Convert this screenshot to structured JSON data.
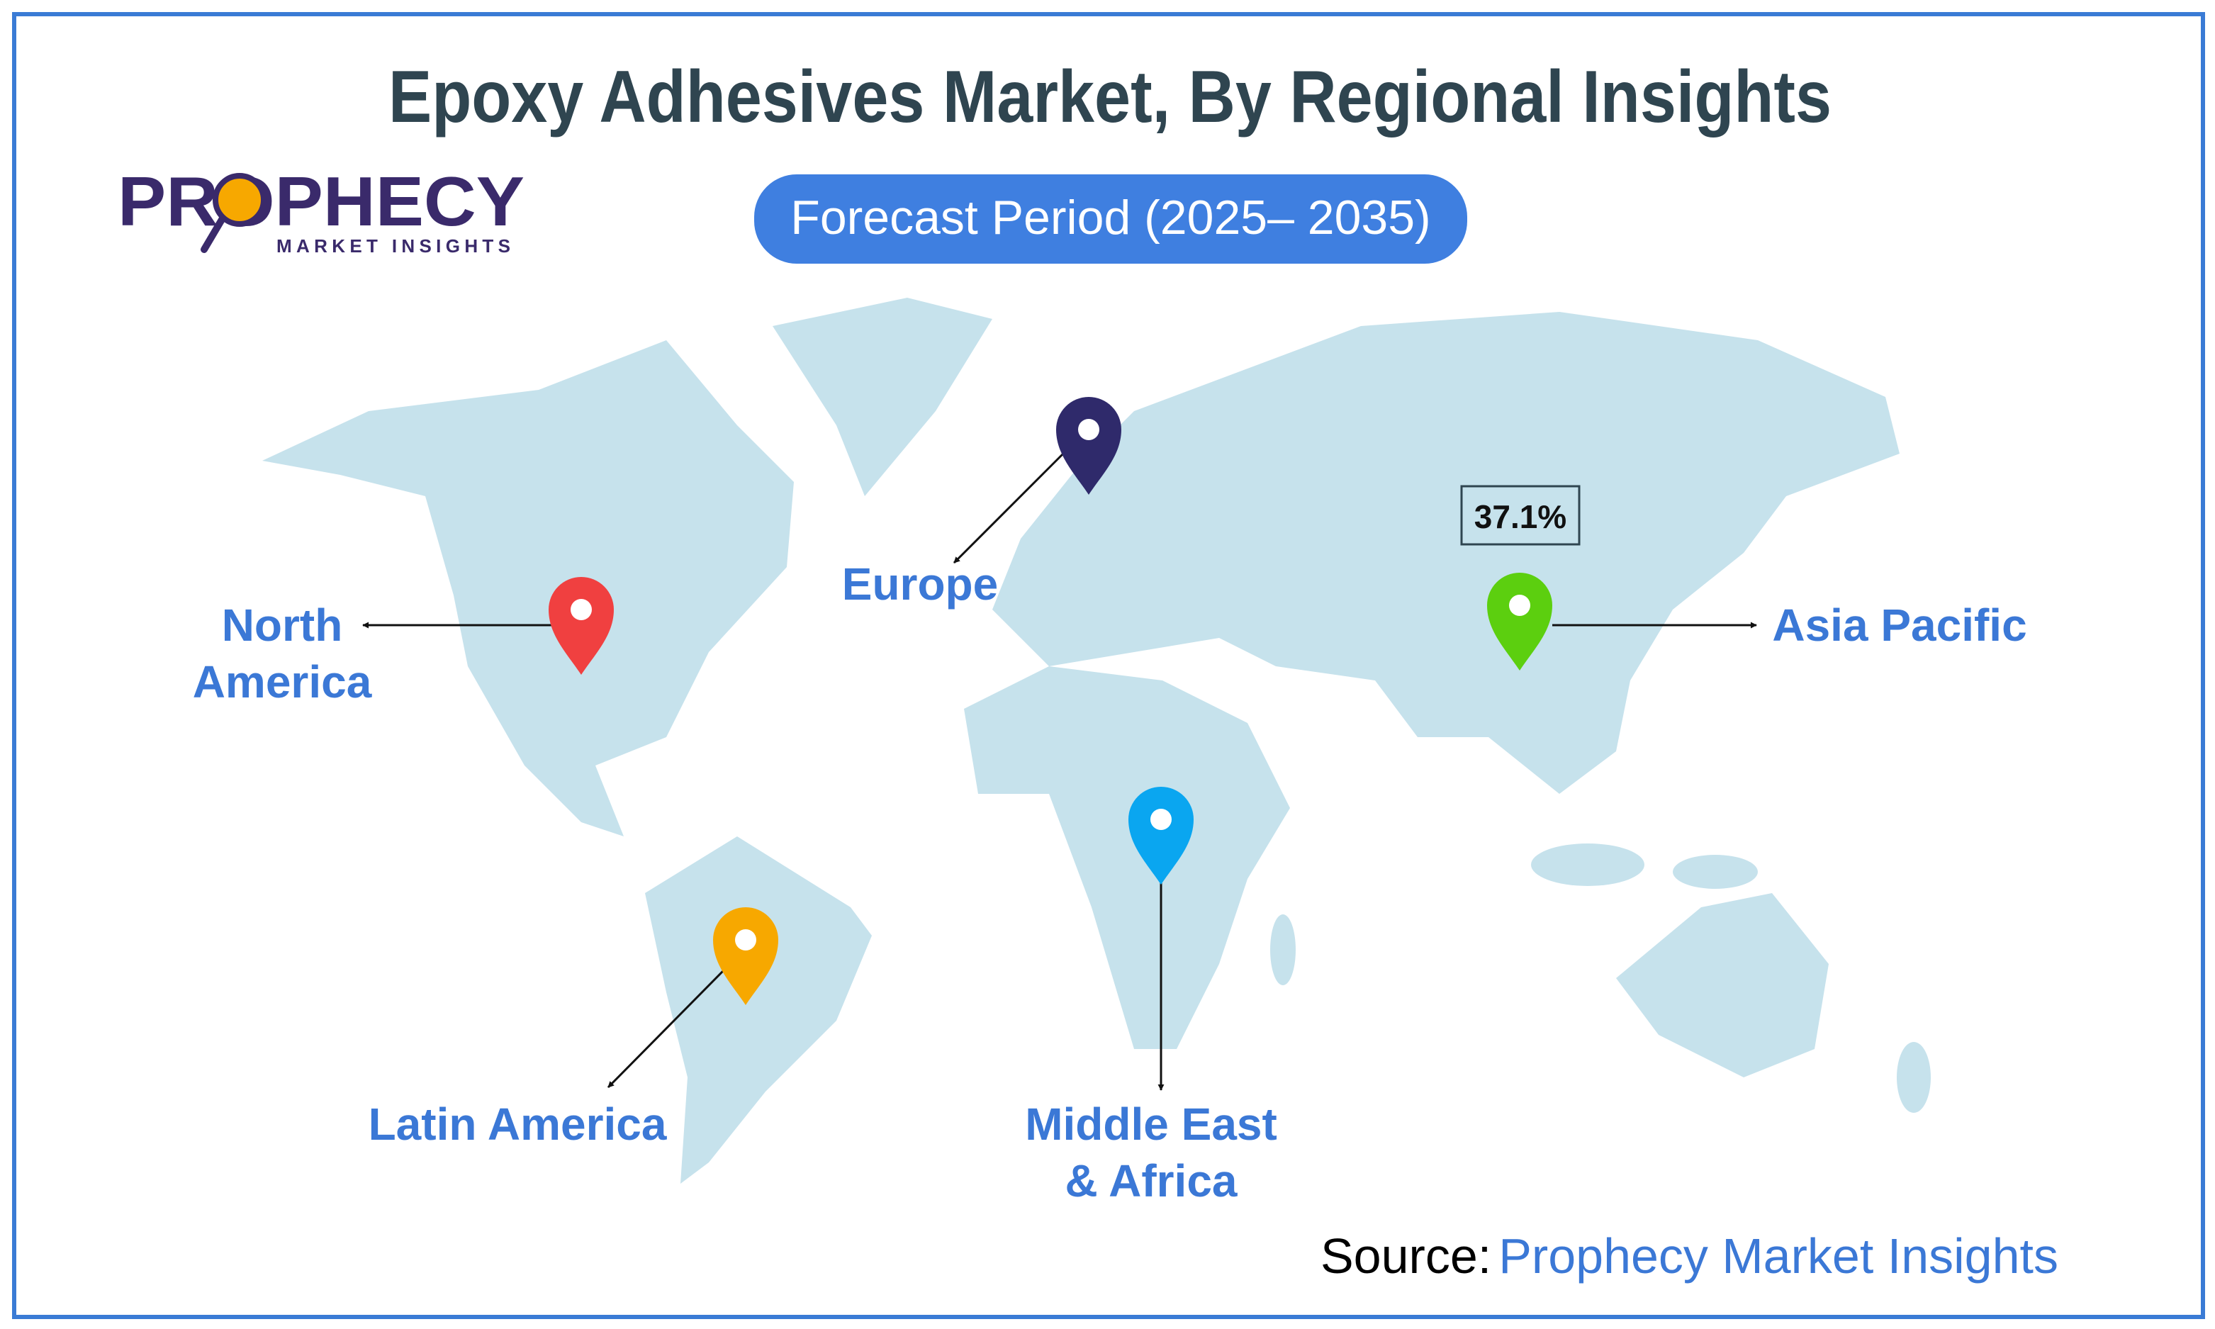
{
  "title": "Epoxy Adhesives Market, By Regional Insights",
  "logo": {
    "name": "PROPHECY",
    "tagline": "MARKET INSIGHTS"
  },
  "forecast": "Forecast Period (2025– 2035)",
  "regions": [
    {
      "label_lines": [
        "North",
        "America"
      ]
    },
    {
      "label_lines": [
        "Europe"
      ]
    },
    {
      "label_lines": [
        "Asia Pacific"
      ],
      "value": "37.1%"
    },
    {
      "label_lines": [
        "Middle East",
        "& Africa"
      ]
    },
    {
      "label_lines": [
        "Latin America"
      ]
    }
  ],
  "source": {
    "prefix": "Source:",
    "name": "Prophecy Market Insights"
  }
}
